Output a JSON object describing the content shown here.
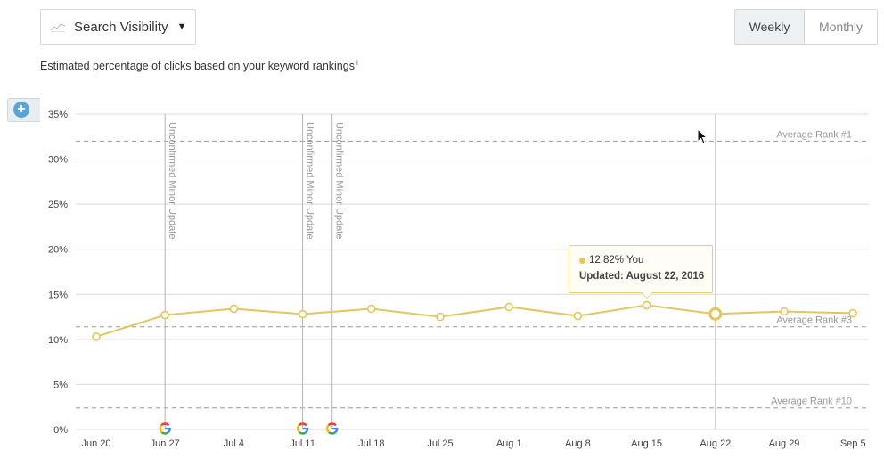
{
  "header": {
    "metric_label": "Search Visibility",
    "metric_icon": "trend-line-icon",
    "subtitle": "Estimated percentage of clicks based on your keyword rankings",
    "info_marker": "i",
    "period_options": [
      "Weekly",
      "Monthly"
    ],
    "selected_period": "Weekly"
  },
  "tooltip": {
    "value_text": "12.82% You",
    "updated_text": "Updated: August 22, 2016"
  },
  "colors": {
    "series": "#e5c65c",
    "grid": "#d9d9d9",
    "reference": "#999999",
    "accent": "#5aa3da"
  },
  "chart_data": {
    "type": "line",
    "x": [
      "Jun 20",
      "Jun 27",
      "Jul 4",
      "Jul 11",
      "Jul 18",
      "Jul 25",
      "Aug 1",
      "Aug 8",
      "Aug 15",
      "Aug 22",
      "Aug 29",
      "Sep 5"
    ],
    "series": [
      {
        "name": "You",
        "values": [
          10.3,
          12.7,
          13.4,
          12.8,
          13.4,
          12.5,
          13.6,
          12.6,
          13.8,
          12.82,
          13.1,
          12.9
        ]
      }
    ],
    "ylim": [
      0,
      35
    ],
    "yticks": [
      0,
      5,
      10,
      15,
      20,
      25,
      30,
      35
    ],
    "ytick_labels": [
      "0%",
      "5%",
      "10%",
      "15%",
      "20%",
      "25%",
      "30%",
      "35%"
    ],
    "grid": true,
    "highlighted_point": "Aug 22",
    "reference_lines": [
      {
        "label": "Average Rank #1",
        "value": 32.0
      },
      {
        "label": "Average Rank #3",
        "value": 11.4
      },
      {
        "label": "Average Rank #10",
        "value": 2.4
      }
    ],
    "annotations": [
      {
        "label": "Unconfirmed Minor Update",
        "date": "Jun 27",
        "icon": "google-icon"
      },
      {
        "label": "Unconfirmed Minor Update",
        "date": "Jul 11",
        "icon": "google-icon"
      },
      {
        "label": "Unconfirmed Minor Update",
        "date": "Jul 14",
        "icon": "google-icon"
      }
    ]
  }
}
